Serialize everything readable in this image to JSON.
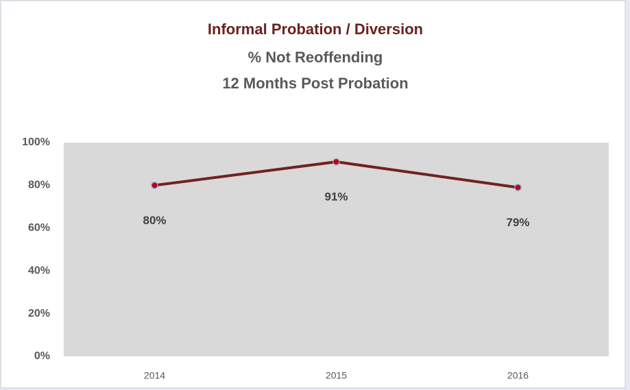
{
  "chart_data": {
    "type": "line",
    "title": "Informal Probation / Diversion",
    "subtitle": [
      "% Not Reoffending",
      "12 Months Post Probation"
    ],
    "categories": [
      "2014",
      "2015",
      "2016"
    ],
    "series": [
      {
        "name": "% Not Reoffending",
        "color": "#722121",
        "values": [
          80,
          91,
          79
        ],
        "value_labels": [
          "80%",
          "91%",
          "79%"
        ]
      }
    ],
    "ylim": [
      0,
      100
    ],
    "yticks": [
      {
        "value": 0,
        "label": "0%"
      },
      {
        "value": 20,
        "label": "20%"
      },
      {
        "value": 40,
        "label": "40%"
      },
      {
        "value": 60,
        "label": "60%"
      },
      {
        "value": 80,
        "label": "80%"
      },
      {
        "value": 100,
        "label": "100%"
      }
    ],
    "plot_background": "#d9d9d9",
    "marker_color": "#c00000"
  }
}
